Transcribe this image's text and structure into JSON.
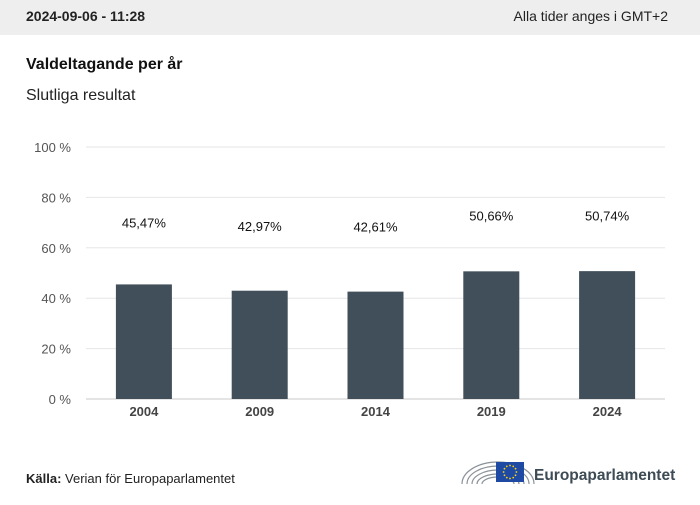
{
  "header": {
    "timestamp": "2024-09-06 - 11:28",
    "timezone_note": "Alla tider anges i GMT+2"
  },
  "chart_data": {
    "type": "bar",
    "title": "Valdeltagande per år",
    "subtitle": "Slutliga resultat",
    "categories": [
      "2004",
      "2009",
      "2014",
      "2019",
      "2024"
    ],
    "values": [
      45.47,
      42.97,
      42.61,
      50.66,
      50.74
    ],
    "data_labels": [
      "45,47%",
      "42,97%",
      "42,61%",
      "50,66%",
      "50,74%"
    ],
    "y_ticks": [
      0,
      20,
      40,
      60,
      80,
      100
    ],
    "y_tick_labels": [
      "0 %",
      "20 %",
      "40 %",
      "60 %",
      "80 %",
      "100 %"
    ],
    "ylim": [
      0,
      100
    ],
    "xlabel": "",
    "ylabel": "",
    "grid": true,
    "bar_color": "#404f5a"
  },
  "footer": {
    "source_label": "Källa:",
    "source_text": "Verian för Europaparlamentet",
    "logo_text": "Europaparlamentet"
  }
}
